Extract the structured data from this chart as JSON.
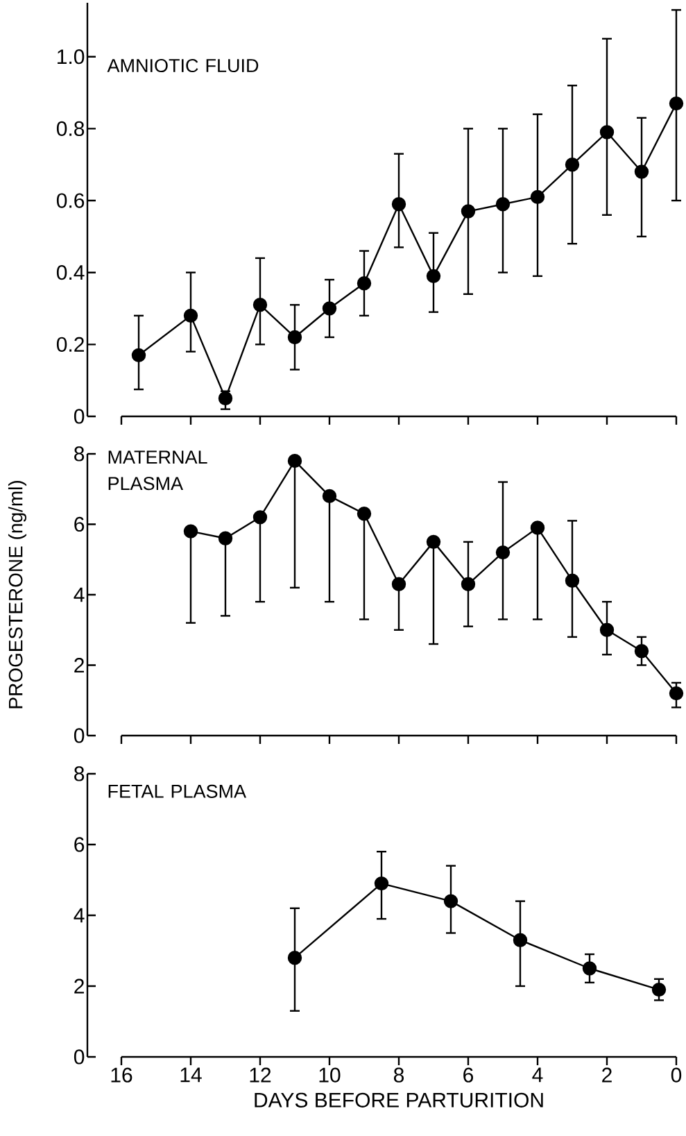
{
  "chart_data": [
    {
      "type": "line",
      "title": "AMNIOTIC FLUID",
      "color": "#000000",
      "marker": "circle",
      "line_style": "solid",
      "tick_labels": "y",
      "x": [
        15.5,
        14,
        13,
        12,
        11,
        10,
        9,
        8,
        7,
        6,
        5,
        4,
        3,
        2,
        1,
        0
      ],
      "values": [
        0.17,
        0.28,
        0.05,
        0.31,
        0.22,
        0.3,
        0.37,
        0.59,
        0.39,
        0.57,
        0.59,
        0.61,
        0.7,
        0.79,
        0.68,
        0.87
      ],
      "errors": [
        [
          0.075,
          0.28
        ],
        [
          0.18,
          0.4
        ],
        [
          0.02,
          0.07
        ],
        [
          0.2,
          0.44
        ],
        [
          0.13,
          0.31
        ],
        [
          0.22,
          0.38
        ],
        [
          0.28,
          0.46
        ],
        [
          0.47,
          0.73
        ],
        [
          0.29,
          0.51
        ],
        [
          0.34,
          0.8
        ],
        [
          0.4,
          0.8
        ],
        [
          0.39,
          0.84
        ],
        [
          0.48,
          0.92
        ],
        [
          0.56,
          1.05
        ],
        [
          0.5,
          0.83
        ],
        [
          0.6,
          1.13
        ]
      ],
      "xlim": [
        16,
        0
      ],
      "xticks": [
        16,
        14,
        12,
        10,
        8,
        6,
        4,
        2,
        0
      ],
      "ylim": [
        0,
        1.15
      ],
      "yticks": [
        0,
        0.2,
        0.4,
        0.6,
        0.8,
        {
          "value": 1.0,
          "label": "1.0"
        }
      ]
    },
    {
      "type": "line",
      "title": "MATERNAL PLASMA",
      "ylabel": "PROGESTERONE (ng/ml)",
      "color": "#000000",
      "marker": "circle",
      "line_style": "solid",
      "tick_labels": "y",
      "x": [
        14,
        13,
        12,
        11,
        10,
        9,
        8,
        7,
        6,
        5,
        4,
        3,
        2,
        1,
        0
      ],
      "values": [
        5.8,
        5.6,
        6.2,
        7.8,
        6.8,
        6.3,
        4.3,
        5.5,
        4.3,
        5.2,
        5.9,
        4.4,
        3.0,
        2.4,
        1.2
      ],
      "errors": [
        [
          3.2,
          5.8
        ],
        [
          3.4,
          5.6
        ],
        [
          3.8,
          6.2
        ],
        [
          4.2,
          7.8
        ],
        [
          3.8,
          6.8
        ],
        [
          3.3,
          6.3
        ],
        [
          3.0,
          4.3
        ],
        [
          2.6,
          5.5
        ],
        [
          3.1,
          5.5
        ],
        [
          3.3,
          7.2
        ],
        [
          3.3,
          5.9
        ],
        [
          2.8,
          6.1
        ],
        [
          2.3,
          3.8
        ],
        [
          2.0,
          2.8
        ],
        [
          0.8,
          1.5
        ]
      ],
      "xlim": [
        16,
        0
      ],
      "xticks": [
        16,
        14,
        12,
        10,
        8,
        6,
        4,
        2,
        0
      ],
      "ylim": [
        0,
        8
      ],
      "yticks": [
        0,
        2,
        4,
        6,
        8
      ]
    },
    {
      "type": "line",
      "title": "FETAL PLASMA",
      "xlabel": "DAYS BEFORE PARTURITION",
      "color": "#000000",
      "marker": "circle",
      "line_style": "solid",
      "x": [
        11,
        8.5,
        6.5,
        4.5,
        2.5,
        0.5
      ],
      "values": [
        2.8,
        4.9,
        4.4,
        3.3,
        2.5,
        1.9
      ],
      "errors": [
        [
          1.3,
          4.2
        ],
        [
          3.9,
          5.8
        ],
        [
          3.5,
          5.4
        ],
        [
          2.0,
          4.4
        ],
        [
          2.1,
          2.9
        ],
        [
          1.6,
          2.2
        ]
      ],
      "xlim": [
        16,
        0
      ],
      "xticks": [
        16,
        14,
        12,
        10,
        8,
        6,
        4,
        2,
        0
      ],
      "ylim": [
        0,
        8
      ],
      "yticks": [
        0,
        2,
        4,
        6,
        8
      ]
    }
  ]
}
